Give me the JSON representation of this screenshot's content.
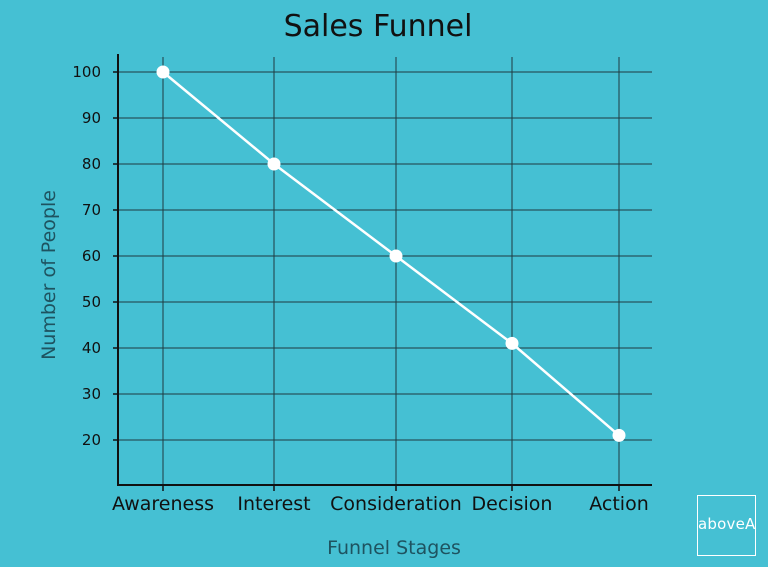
{
  "chart_data": {
    "type": "line",
    "title": "Sales Funnel",
    "xlabel": "Funnel Stages",
    "ylabel": "Number of People",
    "categories": [
      "Awareness",
      "Interest",
      "Consideration",
      "Decision",
      "Action"
    ],
    "series": [
      {
        "values": [
          100,
          80,
          60,
          41,
          21
        ]
      }
    ],
    "ylim": [
      15,
      104
    ],
    "yticks": [
      20,
      30,
      40,
      50,
      60,
      70,
      80,
      90,
      100
    ],
    "grid": true,
    "colors": {
      "background": "#45c0d3",
      "line": "#ffffff",
      "markers": "#ffffff",
      "grid": "#1f3a40"
    }
  },
  "logo": {
    "text": "aboveA"
  }
}
